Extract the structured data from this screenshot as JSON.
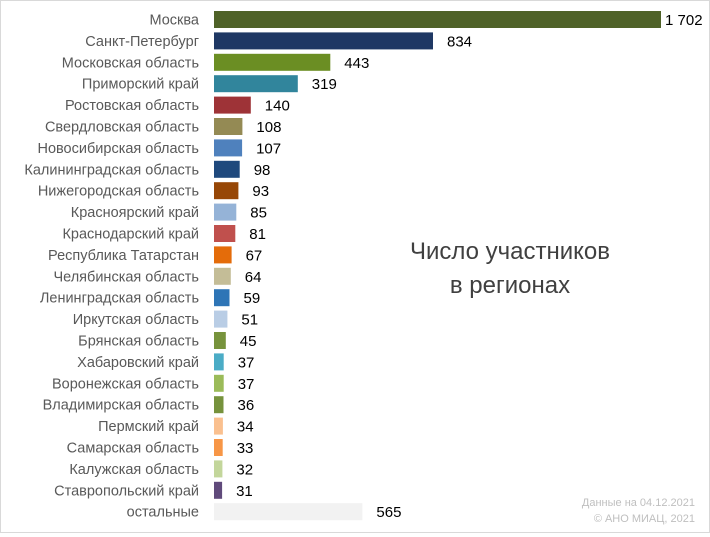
{
  "chart_data": {
    "type": "bar",
    "orientation": "horizontal",
    "title": [
      "Число участников",
      "в регионах"
    ],
    "categories": [
      "Москва",
      "Санкт-Петербург",
      "Московская область",
      "Приморский край",
      "Ростовская область",
      "Свердловская область",
      "Новосибирская область",
      "Калининградская область",
      "Нижегородская область",
      "Красноярский край",
      "Краснодарский край",
      "Республика Татарстан",
      "Челябинская область",
      "Ленинградская область",
      "Иркутская область",
      "Брянская область",
      "Хабаровский край",
      "Воронежская область",
      "Владимирская область",
      "Пермский край",
      "Самарская область",
      "Калужская область",
      "Ставропольский край",
      "остальные"
    ],
    "values": [
      1702,
      834,
      443,
      319,
      140,
      108,
      107,
      98,
      93,
      85,
      81,
      67,
      64,
      59,
      51,
      45,
      37,
      37,
      36,
      34,
      33,
      32,
      31,
      565
    ],
    "value_labels": [
      "1 702",
      "834",
      "443",
      "319",
      "140",
      "108",
      "107",
      "98",
      "93",
      "85",
      "81",
      "67",
      "64",
      "59",
      "51",
      "45",
      "37",
      "37",
      "36",
      "34",
      "33",
      "32",
      "31",
      "565"
    ],
    "colors": [
      "#4f6228",
      "#1f3864",
      "#6b8e23",
      "#31859c",
      "#9e3337",
      "#948a54",
      "#4f81bd",
      "#1f497d",
      "#974706",
      "#95b3d7",
      "#c0504d",
      "#e46c0a",
      "#c4bd97",
      "#2e75b6",
      "#b9cde5",
      "#77933c",
      "#4bacc6",
      "#9bbb59",
      "#76923c",
      "#fac08f",
      "#f79646",
      "#c3d69b",
      "#604a7b",
      "#f2f2f2"
    ],
    "xlim": [
      0,
      1702
    ],
    "grid": false,
    "legend": "none",
    "source_note": [
      "Данные на 04.12.2021",
      "© АНО МИАЦ, 2021"
    ]
  }
}
